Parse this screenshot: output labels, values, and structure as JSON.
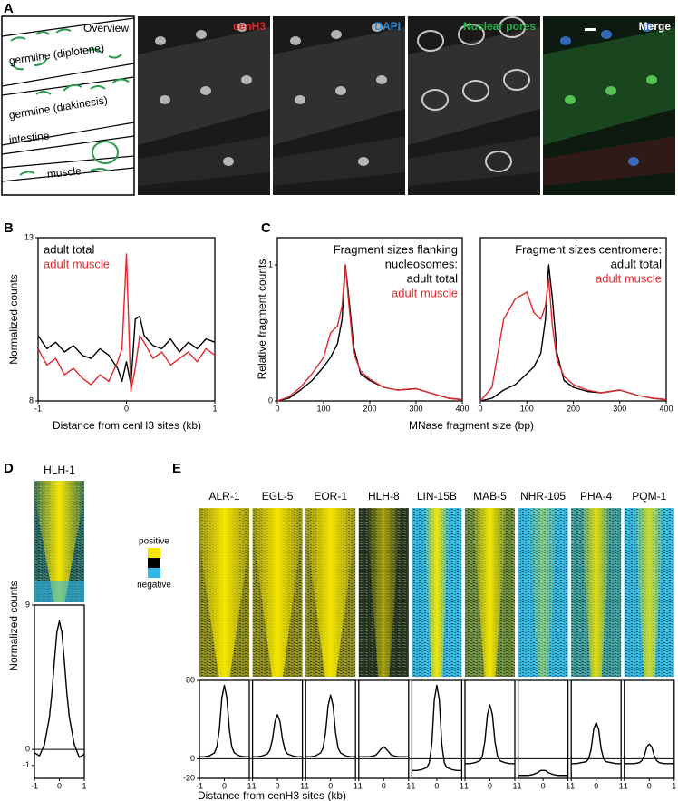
{
  "panel_labels": [
    "A",
    "B",
    "C",
    "D",
    "E"
  ],
  "panel_a": {
    "overview": "Overview",
    "schematic_labels": [
      "germline (diplotene)",
      "germline (diakinesis)",
      "intestine",
      "muscle"
    ],
    "channels": [
      {
        "label": "cenH3",
        "color": "#e3262b"
      },
      {
        "label": "DAPI",
        "color": "#2c8fd8"
      },
      {
        "label": "Nuclear pores",
        "color": "#27b04b"
      },
      {
        "label": "Merge",
        "color": "#ffffff"
      }
    ]
  },
  "heatmap_legend": {
    "positive": "positive",
    "negative": "negative"
  },
  "heatmap_ylabel": "Normalized counts",
  "chart_data": [
    {
      "type": "line",
      "ylabel": "Normalized counts",
      "xlabel": "Distance from cenH3 sites (kb)",
      "x": [
        -1,
        -0.9,
        -0.8,
        -0.7,
        -0.6,
        -0.5,
        -0.4,
        -0.3,
        -0.2,
        -0.1,
        -0.05,
        0,
        0.05,
        0.1,
        0.15,
        0.2,
        0.3,
        0.4,
        0.5,
        0.6,
        0.7,
        0.8,
        0.9,
        1
      ],
      "series": [
        {
          "name": "adult total",
          "color": "#000000",
          "values": [
            10,
            9.6,
            9.8,
            9.5,
            9.7,
            9.4,
            9.3,
            9.6,
            9.4,
            9.0,
            8.6,
            9.2,
            8.5,
            10.5,
            10.6,
            10.0,
            9.7,
            9.6,
            9.9,
            9.5,
            9.8,
            9.6,
            9.9,
            9.8
          ]
        },
        {
          "name": "adult muscle",
          "color": "#e3262b",
          "values": [
            9.6,
            9.1,
            9.3,
            8.8,
            9.0,
            8.7,
            8.5,
            8.8,
            8.6,
            9.2,
            9.6,
            12.5,
            8.3,
            9.0,
            10.0,
            9.8,
            9.3,
            9.5,
            9.1,
            9.3,
            9.5,
            9.2,
            9.6,
            9.4
          ]
        }
      ],
      "xlim": [
        -1,
        1
      ],
      "ylim": [
        8,
        13
      ],
      "xticks": [
        -1,
        0,
        1
      ],
      "yticks": [
        8,
        13
      ]
    },
    {
      "type": "line",
      "ylabel": "Relative fragment counts",
      "xlabel": "MNase fragment size (bp)",
      "annotation": [
        "Fragment sizes flanking",
        "nucleosomes:"
      ],
      "x": [
        0,
        25,
        50,
        75,
        100,
        115,
        130,
        140,
        147,
        155,
        165,
        180,
        200,
        230,
        260,
        300,
        340,
        370,
        400
      ],
      "series": [
        {
          "name": "adult total",
          "color": "#000000",
          "values": [
            0,
            0.02,
            0.08,
            0.15,
            0.25,
            0.32,
            0.42,
            0.6,
            1.0,
            0.75,
            0.4,
            0.2,
            0.15,
            0.1,
            0.08,
            0.09,
            0.05,
            0.02,
            0.01
          ]
        },
        {
          "name": "adult muscle",
          "color": "#e3262b",
          "values": [
            0,
            0.03,
            0.1,
            0.2,
            0.32,
            0.5,
            0.55,
            0.7,
            1.0,
            0.7,
            0.35,
            0.22,
            0.16,
            0.1,
            0.08,
            0.09,
            0.05,
            0.02,
            0.01
          ]
        }
      ],
      "xlim": [
        0,
        400
      ],
      "ylim": [
        0,
        1.2
      ],
      "xticks": [
        0,
        100,
        200,
        300,
        400
      ],
      "yticks": [
        0,
        1
      ]
    },
    {
      "type": "line",
      "annotation": [
        "Fragment sizes centromere:"
      ],
      "x": [
        0,
        25,
        50,
        75,
        100,
        115,
        130,
        140,
        147,
        155,
        165,
        180,
        200,
        230,
        260,
        300,
        340,
        370,
        400
      ],
      "series": [
        {
          "name": "adult total",
          "color": "#000000",
          "values": [
            0,
            0.02,
            0.08,
            0.12,
            0.2,
            0.25,
            0.35,
            0.6,
            1.0,
            0.75,
            0.35,
            0.15,
            0.1,
            0.07,
            0.06,
            0.08,
            0.04,
            0.02,
            0.01
          ]
        },
        {
          "name": "adult muscle",
          "color": "#e3262b",
          "values": [
            0,
            0.1,
            0.6,
            0.75,
            0.8,
            0.65,
            0.6,
            0.7,
            0.9,
            0.55,
            0.3,
            0.18,
            0.12,
            0.08,
            0.06,
            0.08,
            0.04,
            0.02,
            0.01
          ]
        }
      ],
      "xlim": [
        0,
        400
      ],
      "ylim": [
        0,
        1.2
      ],
      "xticks": [
        0,
        100,
        200,
        300,
        400
      ]
    },
    {
      "type": "line",
      "x": [
        -1,
        -0.8,
        -0.6,
        -0.4,
        -0.3,
        -0.2,
        -0.1,
        0,
        0.1,
        0.2,
        0.3,
        0.4,
        0.6,
        0.8,
        1
      ],
      "series": [
        {
          "name": "HLH-1",
          "color": "#000000",
          "values": [
            -0.2,
            -0.4,
            0.3,
            2,
            3.5,
            5.5,
            7.3,
            8,
            7.3,
            5.5,
            3.5,
            2,
            0.3,
            -0.5,
            -0.3
          ]
        }
      ],
      "xlim": [
        -1,
        1
      ],
      "ylim": [
        -1.8,
        9
      ],
      "xticks": [
        -1,
        0,
        1
      ],
      "yticks": [
        -1,
        0,
        9
      ],
      "reference_line": 0
    },
    {
      "type": "line",
      "xlabel": "Distance from cenH3 sites (kb)",
      "x": [
        -1,
        -0.8,
        -0.6,
        -0.4,
        -0.3,
        -0.2,
        -0.1,
        0,
        0.1,
        0.2,
        0.3,
        0.4,
        0.6,
        0.8,
        1
      ],
      "series": [
        {
          "name": "ALR-1",
          "color": "#000000",
          "values": [
            2,
            2,
            3,
            6,
            12,
            30,
            62,
            75,
            62,
            30,
            12,
            6,
            3,
            2,
            2
          ]
        },
        {
          "name": "EGL-5",
          "color": "#000000",
          "values": [
            2,
            2,
            3,
            5,
            9,
            20,
            38,
            45,
            38,
            20,
            9,
            5,
            3,
            2,
            2
          ]
        },
        {
          "name": "EOR-1",
          "color": "#000000",
          "values": [
            2,
            2,
            3,
            6,
            11,
            27,
            54,
            65,
            54,
            27,
            11,
            6,
            3,
            2,
            2
          ]
        },
        {
          "name": "HLH-8",
          "color": "#000000",
          "values": [
            2,
            2,
            2,
            3,
            4,
            7,
            10,
            12,
            10,
            7,
            4,
            3,
            2,
            2,
            2
          ]
        },
        {
          "name": "LIN-15B",
          "color": "#000000",
          "values": [
            -12,
            -12,
            -11,
            -9,
            -4,
            15,
            60,
            75,
            60,
            15,
            -4,
            -9,
            -11,
            -12,
            -12
          ]
        },
        {
          "name": "MAB-5",
          "color": "#000000",
          "values": [
            -5,
            -5,
            -4,
            -2,
            3,
            18,
            45,
            55,
            45,
            18,
            3,
            -2,
            -4,
            -5,
            -5
          ]
        },
        {
          "name": "NHR-105",
          "color": "#000000",
          "values": [
            -17,
            -17,
            -17,
            -16,
            -15,
            -14,
            -12,
            -12,
            -12,
            -14,
            -15,
            -16,
            -17,
            -17,
            -17
          ]
        },
        {
          "name": "PHA-4",
          "color": "#000000",
          "values": [
            -5,
            -5,
            -4,
            -3,
            0,
            10,
            30,
            37,
            30,
            10,
            0,
            -3,
            -4,
            -5,
            -5
          ]
        },
        {
          "name": "PQM-1",
          "color": "#000000",
          "values": [
            -5,
            -5,
            -5,
            -4,
            -2,
            3,
            12,
            15,
            12,
            3,
            -2,
            -4,
            -5,
            -5,
            -5
          ]
        }
      ],
      "xlim": [
        -1,
        1
      ],
      "ylim": [
        -20,
        80
      ],
      "xticks": [
        -1,
        0,
        1
      ],
      "yticks": [
        -20,
        0,
        80
      ],
      "reference_line": 0
    }
  ]
}
